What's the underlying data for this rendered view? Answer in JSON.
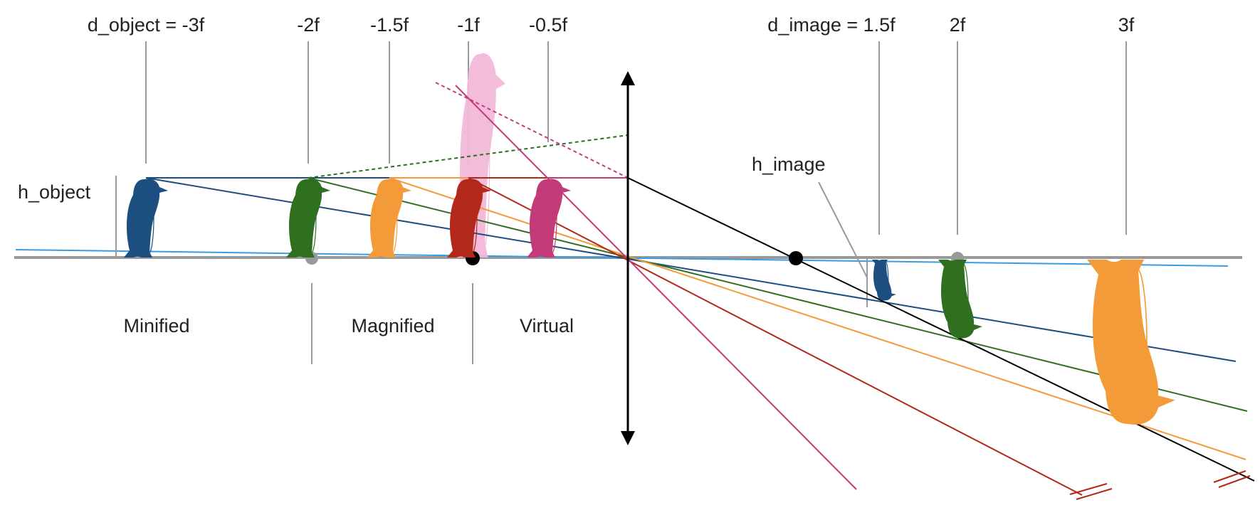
{
  "labels": {
    "d_object": "d_object = -3f",
    "minus_2f": "-2f",
    "minus_1_5f": "-1.5f",
    "minus_1f": "-1f",
    "minus_0_5f": "-0.5f",
    "d_image": "d_image = 1.5f",
    "plus_2f": "2f",
    "plus_3f": "3f",
    "h_object": "h_object",
    "h_image": "h_image",
    "region_minified": "Minified",
    "region_magnified": "Magnified",
    "region_virtual": "Virtual"
  },
  "colors": {
    "blue": "#1c4e80",
    "green": "#2e7020",
    "orange": "#f29b38",
    "red": "#b2281a",
    "magenta": "#c23a78",
    "pink": "#f2b8d8",
    "light_blue": "#3a9be2",
    "axis": "#999999",
    "black": "#000000"
  }
}
